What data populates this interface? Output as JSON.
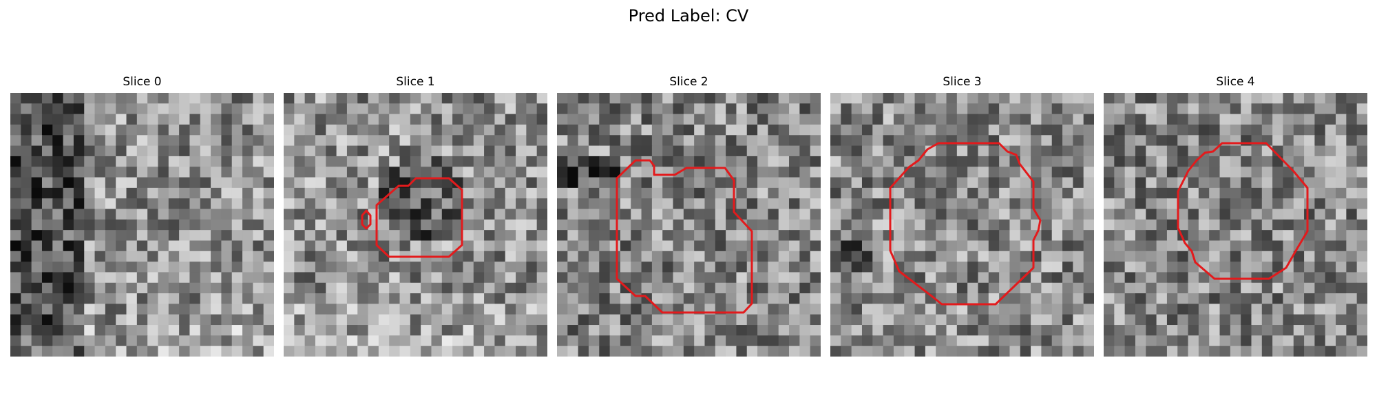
{
  "figure": {
    "title": "Pred Label: CV",
    "contour_color": "#e31a1c",
    "colormap": "gray"
  },
  "slices": [
    {
      "title": "Slice 0"
    },
    {
      "title": "Slice 1"
    },
    {
      "title": "Slice 2"
    },
    {
      "title": "Slice 3"
    },
    {
      "title": "Slice 4"
    }
  ]
}
